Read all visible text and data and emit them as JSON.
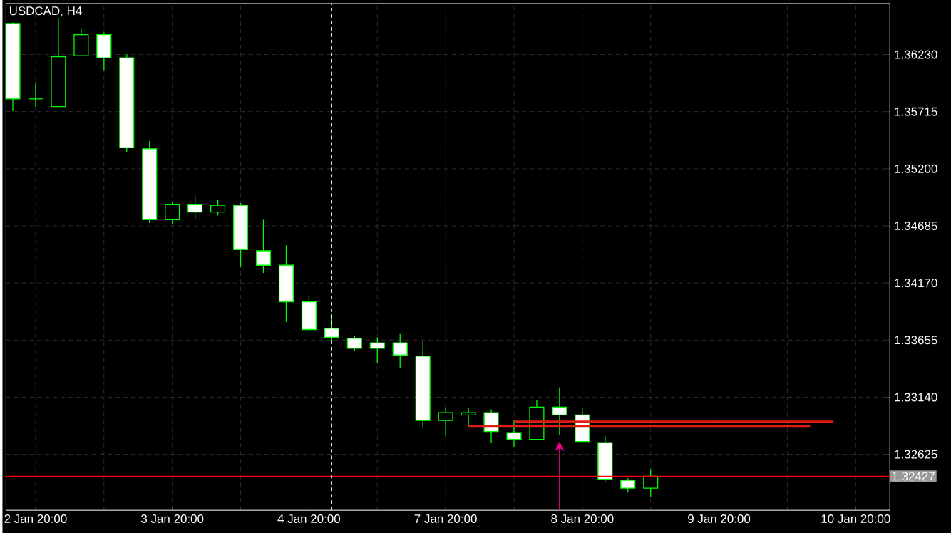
{
  "chart_data": {
    "type": "candlestick",
    "title": "USDCAD, H4",
    "categories": [
      null,
      "2 Jan 20:00",
      null,
      null,
      null,
      null,
      null,
      "3 Jan 20:00",
      null,
      null,
      null,
      null,
      null,
      "4 Jan 20:00",
      null,
      null,
      null,
      null,
      null,
      "7 Jan 20:00",
      null,
      null,
      null,
      null,
      null,
      "8 Jan 20:00",
      null,
      null,
      null,
      null,
      null,
      "9 Jan 20:00",
      null,
      null,
      null,
      null,
      null,
      "10 Jan 20:00",
      null
    ],
    "ohlc": [
      [
        1.3651,
        1.3652,
        1.3572,
        1.3583
      ],
      [
        1.3583,
        1.3598,
        1.3576,
        1.3583
      ],
      [
        1.3576,
        1.3656,
        1.3576,
        1.3621
      ],
      [
        1.3622,
        1.3646,
        1.3622,
        1.3641
      ],
      [
        1.3641,
        1.3643,
        1.3609,
        1.362
      ],
      [
        1.362,
        1.3623,
        1.3535,
        1.3539
      ],
      [
        1.3538,
        1.3545,
        1.3471,
        1.3474
      ],
      [
        1.3474,
        1.349,
        1.347,
        1.3488
      ],
      [
        1.3488,
        1.3496,
        1.3475,
        1.3481
      ],
      [
        1.3481,
        1.3492,
        1.3478,
        1.3487
      ],
      [
        1.3487,
        1.3489,
        1.3432,
        1.3447
      ],
      [
        1.3446,
        1.3474,
        1.3426,
        1.3433
      ],
      [
        1.3433,
        1.3451,
        1.3382,
        1.34
      ],
      [
        1.34,
        1.3406,
        1.3375,
        1.3375
      ],
      [
        1.3376,
        1.3389,
        1.3365,
        1.3368
      ],
      [
        1.3367,
        1.3369,
        1.3356,
        1.3358
      ],
      [
        1.3363,
        1.3368,
        1.3345,
        1.3358
      ],
      [
        1.3363,
        1.3371,
        1.334,
        1.3352
      ],
      [
        1.3351,
        1.3365,
        1.3287,
        1.3293
      ],
      [
        1.3293,
        1.3305,
        1.3279,
        1.33
      ],
      [
        1.3298,
        1.3304,
        1.3289,
        1.33
      ],
      [
        1.33,
        1.3303,
        1.3273,
        1.3283
      ],
      [
        1.3282,
        1.3293,
        1.3269,
        1.3276
      ],
      [
        1.3276,
        1.3311,
        1.3276,
        1.3305
      ],
      [
        1.3305,
        1.3323,
        1.328,
        1.3298
      ],
      [
        1.3298,
        1.3304,
        1.3274,
        1.3274
      ],
      [
        1.3273,
        1.3279,
        1.3238,
        1.324
      ],
      [
        1.3239,
        1.3241,
        1.3228,
        1.3232
      ],
      [
        1.3232,
        1.3249,
        1.3224,
        1.32427
      ],
      null,
      null,
      null,
      null,
      null,
      null,
      null,
      null,
      null,
      null
    ],
    "color": "#00ff00",
    "colors": [
      "#ffffff",
      "#00ff00",
      "#000000",
      "#000000",
      "#ffffff",
      "#ffffff",
      "#ffffff",
      "#000000",
      "#ffffff",
      "#000000",
      "#ffffff",
      "#ffffff",
      "#ffffff",
      "#ffffff",
      "#ffffff",
      "#ffffff",
      "#ffffff",
      "#ffffff",
      "#ffffff",
      "#000000",
      "#000000",
      "#ffffff",
      "#ffffff",
      "#000000",
      "#ffffff",
      "#ffffff",
      "#ffffff",
      "#ffffff",
      "#000000",
      null,
      null,
      null,
      null,
      null,
      null,
      null,
      null,
      null,
      null
    ],
    "series": [
      {
        "type": "line",
        "values": [
          null,
          null,
          null,
          null,
          null,
          null,
          null,
          null,
          null,
          null,
          null,
          null,
          null,
          null,
          null,
          null,
          null,
          null,
          null,
          null,
          1.3288,
          1.3288,
          1.3288,
          1.3288,
          1.3288,
          1.3288,
          1.3288,
          1.3288,
          1.3288,
          1.3288,
          1.3288,
          1.3288,
          1.3288,
          1.3288,
          1.3288,
          1.3288,
          null,
          null,
          null
        ],
        "color": "#e01e10"
      },
      {
        "type": "line",
        "values": [
          null,
          null,
          null,
          null,
          null,
          null,
          null,
          null,
          null,
          null,
          null,
          null,
          null,
          null,
          null,
          null,
          null,
          null,
          null,
          null,
          null,
          null,
          1.3292,
          1.3292,
          1.3292,
          1.3292,
          1.3292,
          1.3292,
          1.3292,
          1.3292,
          1.3292,
          1.3292,
          1.3292,
          1.3292,
          1.3292,
          1.3292,
          1.3292,
          null,
          null
        ],
        "color": "#e01e10"
      }
    ],
    "ylim": [
      1.3212,
      1.3669
    ],
    "yticks": [
      {
        "value": 1.3623,
        "label": "1.36230"
      },
      {
        "value": 1.35715,
        "label": "1.35715"
      },
      {
        "value": 1.352,
        "label": "1.35200"
      },
      {
        "value": 1.34685,
        "label": "1.34685"
      },
      {
        "value": 1.3417,
        "label": "1.34170"
      },
      {
        "value": 1.33655,
        "label": "1.33655"
      },
      {
        "value": 1.3314,
        "label": "1.33140"
      },
      {
        "value": 1.32625,
        "label": "1.32625"
      }
    ],
    "ref_lines": [
      {
        "axis": "y",
        "value": 1.32427,
        "label": "1.32427",
        "color": "#ff0000"
      }
    ],
    "grid": true
  }
}
